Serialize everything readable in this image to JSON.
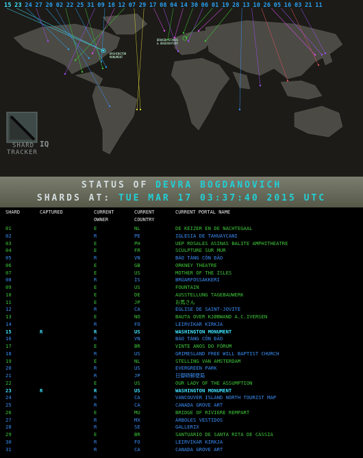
{
  "header_shards": [
    {
      "n": "15",
      "c": "#3fe3ff"
    },
    {
      "n": "23",
      "c": "#3fe3ff"
    },
    {
      "n": "24",
      "c": "#2a9ff0"
    },
    {
      "n": "27",
      "c": "#2a9ff0"
    },
    {
      "n": "20",
      "c": "#2a9ff0"
    },
    {
      "n": "02",
      "c": "#2a9ff0"
    },
    {
      "n": "22",
      "c": "#2a9ff0"
    },
    {
      "n": "25",
      "c": "#2a9ff0"
    },
    {
      "n": "31",
      "c": "#2a9ff0"
    },
    {
      "n": "09",
      "c": "#2a9ff0"
    },
    {
      "n": "18",
      "c": "#2a9ff0"
    },
    {
      "n": "12",
      "c": "#2a9ff0"
    },
    {
      "n": "07",
      "c": "#2a9ff0"
    },
    {
      "n": "29",
      "c": "#2a9ff0"
    },
    {
      "n": "17",
      "c": "#2a9ff0"
    },
    {
      "n": "08",
      "c": "#2a9ff0"
    },
    {
      "n": "04",
      "c": "#2a9ff0"
    },
    {
      "n": "14",
      "c": "#2a9ff0"
    },
    {
      "n": "30",
      "c": "#2a9ff0"
    },
    {
      "n": "06",
      "c": "#2a9ff0"
    },
    {
      "n": "01",
      "c": "#2a9ff0"
    },
    {
      "n": "19",
      "c": "#2a9ff0"
    },
    {
      "n": "28",
      "c": "#2a9ff0"
    },
    {
      "n": "13",
      "c": "#2a9ff0"
    },
    {
      "n": "10",
      "c": "#2a9ff0"
    },
    {
      "n": "26",
      "c": "#2a9ff0"
    },
    {
      "n": "05",
      "c": "#2a9ff0"
    },
    {
      "n": "16",
      "c": "#2a9ff0"
    },
    {
      "n": "03",
      "c": "#2a9ff0"
    },
    {
      "n": "21",
      "c": "#2a9ff0"
    },
    {
      "n": "11",
      "c": "#2a9ff0"
    }
  ],
  "map_labels": {
    "washington": "WASHINGTON\nMONUMENT",
    "europe": "BROKEN STANDS\n& OBSERVATORY"
  },
  "logo": {
    "line1": "SHARD",
    "line2": "TRACKER",
    "badge": "IQ"
  },
  "status": {
    "prefix1": "STATUS OF ",
    "agent": "DEVRA BOGDANOVICH",
    "prefix2": "SHARDS AT: ",
    "timestamp": "TUE MAR 17 03:37:40 2015 UTC"
  },
  "columns": {
    "shard": "SHARD",
    "captured": "CAPTURED",
    "owner1": "CURRENT",
    "owner2": "OWNER",
    "country1": "CURRENT",
    "country2": "COUNTRY",
    "portal": "CURRENT PORTAL NAME"
  },
  "colors": {
    "res": "#3a8df5",
    "enl": "#3fc63a",
    "highlight": "#3fe3ff"
  },
  "rows": [
    {
      "shard": "01",
      "cap": "",
      "owner": "E",
      "country": "NL",
      "portal": "DE KEIZER EN DE NACHTEGAAL"
    },
    {
      "shard": "02",
      "cap": "",
      "owner": "R",
      "country": "PE",
      "portal": "IGLESIA DE TAHUAYCANI"
    },
    {
      "shard": "03",
      "cap": "",
      "owner": "E",
      "country": "PH",
      "portal": "UEP ROSALES ASINAS BALITE AMPHITHEATRE"
    },
    {
      "shard": "04",
      "cap": "",
      "owner": "E",
      "country": "FR",
      "portal": "SCULPTURE SUR MUR"
    },
    {
      "shard": "05",
      "cap": "",
      "owner": "R",
      "country": "VN",
      "portal": "BÁO TÀNG CÔN ĐẢO"
    },
    {
      "shard": "06",
      "cap": "",
      "owner": "E",
      "country": "GB",
      "portal": "ORKNEY THEATRE"
    },
    {
      "shard": "07",
      "cap": "",
      "owner": "E",
      "country": "US",
      "portal": "MOTHER OF THE ISLES"
    },
    {
      "shard": "08",
      "cap": "",
      "owner": "R",
      "country": "IS",
      "portal": "BRÚARFOSSAKKERI"
    },
    {
      "shard": "09",
      "cap": "",
      "owner": "E",
      "country": "US",
      "portal": "FOUNTAIN"
    },
    {
      "shard": "10",
      "cap": "",
      "owner": "E",
      "country": "DE",
      "portal": "AUSSTELLUNG TAGEBAUWERK"
    },
    {
      "shard": "11",
      "cap": "",
      "owner": "E",
      "country": "JP",
      "portal": "お馬さん"
    },
    {
      "shard": "12",
      "cap": "",
      "owner": "R",
      "country": "CA",
      "portal": "ÉGLISE DE SAINT-JOVITE"
    },
    {
      "shard": "13",
      "cap": "",
      "owner": "E",
      "country": "NO",
      "portal": "BAUTA OVER KJØBWAND A.C.IVERSEN"
    },
    {
      "shard": "14",
      "cap": "",
      "owner": "R",
      "country": "FO",
      "portal": "LEIRVÍKAR KIRKJA"
    },
    {
      "shard": "15",
      "cap": "R",
      "owner": "R",
      "country": "US",
      "portal": "WASHINGTON MONUMENT",
      "hi": true
    },
    {
      "shard": "16",
      "cap": "",
      "owner": "R",
      "country": "VN",
      "portal": "BÁO TÀNG CÔN ĐẢO"
    },
    {
      "shard": "17",
      "cap": "",
      "owner": "E",
      "country": "BR",
      "portal": "VINTE ANOS DO FÓRUM"
    },
    {
      "shard": "18",
      "cap": "",
      "owner": "R",
      "country": "US",
      "portal": "GRIMESLAND FREE WILL BAPTIST CHURCH"
    },
    {
      "shard": "19",
      "cap": "",
      "owner": "E",
      "country": "NL",
      "portal": "STELLING VAN AMSTERDAM"
    },
    {
      "shard": "20",
      "cap": "",
      "owner": "R",
      "country": "US",
      "portal": "EVERGREEN PARK"
    },
    {
      "shard": "21",
      "cap": "",
      "owner": "R",
      "country": "JP",
      "portal": "日御碕郵便局"
    },
    {
      "shard": "22",
      "cap": "",
      "owner": "E",
      "country": "US",
      "portal": "OUR LADY OF THE ASSUMPTION"
    },
    {
      "shard": "23",
      "cap": "R",
      "owner": "R",
      "country": "US",
      "portal": "WASHINGTON MONUMENT",
      "hi": true
    },
    {
      "shard": "24",
      "cap": "",
      "owner": "R",
      "country": "CA",
      "portal": "VANCOUVER ISLAND NORTH TOURIST MAP"
    },
    {
      "shard": "25",
      "cap": "",
      "owner": "R",
      "country": "CA",
      "portal": "CANADA GROVE ART"
    },
    {
      "shard": "26",
      "cap": "",
      "owner": "E",
      "country": "MU",
      "portal": "BRIDGE OF RIVIERE REMPART"
    },
    {
      "shard": "27",
      "cap": "",
      "owner": "R",
      "country": "MX",
      "portal": "ÁRBOLES VESTIDOS"
    },
    {
      "shard": "28",
      "cap": "",
      "owner": "R",
      "country": "SE",
      "portal": "GALLERIX"
    },
    {
      "shard": "29",
      "cap": "",
      "owner": "E",
      "country": "BR",
      "portal": "SANTUÁRIO DE SANTA RITA DE CÁSSIA"
    },
    {
      "shard": "30",
      "cap": "",
      "owner": "R",
      "country": "FO",
      "portal": "LEIRVÍKAR KIRKJA"
    },
    {
      "shard": "31",
      "cap": "",
      "owner": "R",
      "country": "CA",
      "portal": "CANADA GROVE ART"
    }
  ]
}
